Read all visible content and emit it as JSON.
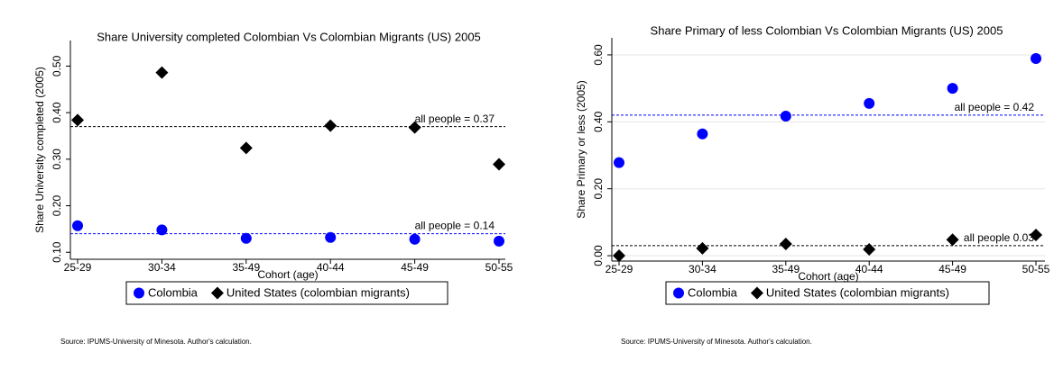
{
  "chart_data": [
    {
      "type": "scatter",
      "title": "Share University completed Colombian Vs Colombian Migrants (US) 2005",
      "y_label": "Share University completed (2005)",
      "x_label": "Cohort (age)",
      "categories": [
        "25-29",
        "30-34",
        "35-49",
        "40-44",
        "45-49",
        "50-55"
      ],
      "series": [
        {
          "name": "Colombia",
          "color": "#0000ff",
          "marker": "circle",
          "values": [
            0.157,
            0.148,
            0.13,
            0.132,
            0.128,
            0.124
          ]
        },
        {
          "name": "United States (colombian migrants)",
          "color": "#000000",
          "marker": "diamond",
          "values": [
            0.384,
            0.486,
            0.324,
            0.372,
            0.368,
            0.289
          ]
        }
      ],
      "reference_lines": [
        {
          "value": 0.37,
          "label": "all people = 0.37",
          "color": "#000000"
        },
        {
          "value": 0.14,
          "label": "all people = 0.14",
          "color": "#0000ff"
        }
      ],
      "ylim": [
        0.085,
        0.555
      ],
      "yticks": [
        {
          "value": 0.1,
          "label": "0.10"
        },
        {
          "value": 0.2,
          "label": "0.20"
        },
        {
          "value": 0.3,
          "label": "0.30"
        },
        {
          "value": 0.4,
          "label": "0.40"
        },
        {
          "value": 0.5,
          "label": "0.50"
        }
      ],
      "grid": false,
      "source": "Source: IPUMS-University of Minesota. Author's calculation."
    },
    {
      "type": "scatter",
      "title": "Share Primary of less Colombian Vs Colombian Migrants (US) 2005",
      "y_label": "Share Primary or less (2005)",
      "x_label": "Cohort (age)",
      "categories": [
        "25-29",
        "30-34",
        "35-49",
        "40-44",
        "45-49",
        "50-55"
      ],
      "series": [
        {
          "name": "Colombia",
          "color": "#0000ff",
          "marker": "circle",
          "values": [
            0.278,
            0.364,
            0.417,
            0.455,
            0.5,
            0.589
          ]
        },
        {
          "name": "United States (colombian migrants)",
          "color": "#000000",
          "marker": "diamond",
          "values": [
            0.0,
            0.022,
            0.035,
            0.019,
            0.048,
            0.062
          ]
        }
      ],
      "reference_lines": [
        {
          "value": 0.42,
          "label": "all people = 0.42",
          "color": "#0000ff"
        },
        {
          "value": 0.03,
          "label": "all people 0.03",
          "color": "#000000"
        }
      ],
      "ylim": [
        -0.016,
        0.651
      ],
      "yticks": [
        {
          "value": 0,
          "label": "0.00"
        },
        {
          "value": 0.2,
          "label": "0.20"
        },
        {
          "value": 0.4,
          "label": "0.40"
        },
        {
          "value": 0.6,
          "label": "0.60"
        }
      ],
      "grid": true,
      "source": "Source: IPUMS-University of Minesota. Author's calculation."
    }
  ]
}
